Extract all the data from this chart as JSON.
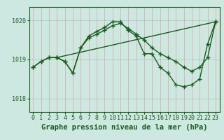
{
  "title": "Graphe pression niveau de la mer (hPa)",
  "background_color": "#cce8e0",
  "grid_color_v": "#e8a0a0",
  "grid_color_h": "#a0c8c0",
  "line_color": "#1a5c1a",
  "ylim": [
    1017.65,
    1020.35
  ],
  "yticks": [
    1018,
    1019,
    1020
  ],
  "xlim": [
    -0.5,
    23.5
  ],
  "xticks": [
    0,
    1,
    2,
    3,
    4,
    5,
    6,
    7,
    8,
    9,
    10,
    11,
    12,
    13,
    14,
    15,
    16,
    17,
    18,
    19,
    20,
    21,
    22,
    23
  ],
  "line1_x": [
    0,
    1,
    2,
    3,
    4,
    5,
    6,
    7,
    8,
    9,
    10,
    11,
    12,
    13,
    14,
    15,
    16,
    17,
    18,
    19,
    20,
    21,
    22,
    23
  ],
  "line1_y": [
    1018.8,
    1018.95,
    1019.05,
    1019.05,
    1018.95,
    1018.65,
    1019.3,
    1019.6,
    1019.72,
    1019.82,
    1019.97,
    1019.97,
    1019.75,
    1019.6,
    1019.15,
    1019.15,
    1018.8,
    1018.65,
    1018.35,
    1018.3,
    1018.35,
    1018.5,
    1019.4,
    1019.97
  ],
  "line2_x": [
    0,
    1,
    2,
    3,
    4,
    5,
    6,
    7,
    8,
    9,
    10,
    11,
    12,
    13,
    14,
    15,
    16,
    17,
    18,
    19,
    20,
    21,
    22,
    23
  ],
  "line2_y": [
    1018.8,
    1018.95,
    1019.05,
    1019.05,
    1018.95,
    1018.65,
    1019.3,
    1019.55,
    1019.65,
    1019.75,
    1019.87,
    1019.93,
    1019.8,
    1019.65,
    1019.5,
    1019.3,
    1019.15,
    1019.05,
    1018.95,
    1018.8,
    1018.7,
    1018.8,
    1019.05,
    1019.97
  ],
  "line3_x": [
    3,
    23
  ],
  "line3_y": [
    1019.05,
    1019.97
  ],
  "marker_size": 2.5,
  "linewidth": 1.0,
  "title_fontsize": 7.5,
  "tick_fontsize": 6.0
}
